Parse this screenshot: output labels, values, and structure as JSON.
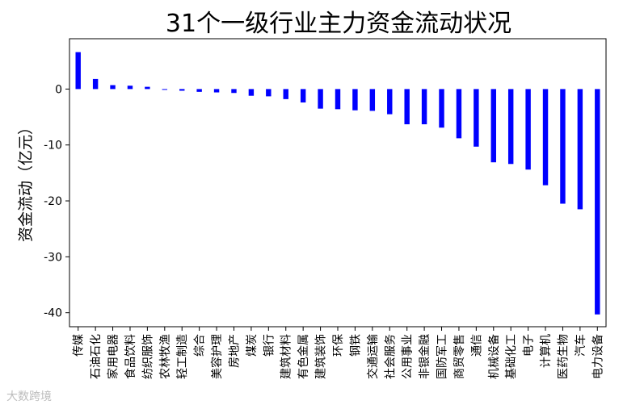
{
  "chart_data": {
    "type": "bar",
    "title": "31个一级行业主力资金流动状况",
    "xlabel": "",
    "ylabel": "资金流动（亿元）",
    "ylim": [
      -42.5,
      9.0
    ],
    "yticks": [
      0,
      -10,
      -20,
      -30,
      -40
    ],
    "grid": false,
    "bar_color": "#0000ff",
    "categories": [
      "传媒",
      "石油石化",
      "家用电器",
      "食品饮料",
      "纺织服饰",
      "农林牧渔",
      "轻工制造",
      "综合",
      "美容护理",
      "房地产",
      "煤炭",
      "银行",
      "建筑材料",
      "有色金属",
      "建筑装饰",
      "环保",
      "钢铁",
      "交通运输",
      "社会服务",
      "公用事业",
      "非银金融",
      "国防军工",
      "商贸零售",
      "通信",
      "机械设备",
      "基础化工",
      "电子",
      "计算机",
      "医药生物",
      "汽车",
      "电力设备"
    ],
    "values": [
      6.6,
      1.8,
      0.7,
      0.6,
      0.4,
      0.0,
      -0.3,
      -0.5,
      -0.6,
      -0.7,
      -1.2,
      -1.3,
      -1.8,
      -2.4,
      -3.5,
      -3.6,
      -3.8,
      -3.9,
      -4.5,
      -6.3,
      -6.3,
      -6.9,
      -8.8,
      -10.3,
      -13.1,
      -13.4,
      -14.4,
      -17.2,
      -20.5,
      -21.5,
      -40.3
    ]
  },
  "watermark": "大数跨境"
}
